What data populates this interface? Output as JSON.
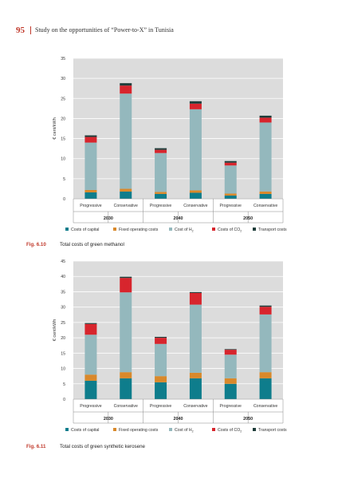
{
  "header": {
    "page_number": "95",
    "title": "Study on the opportunities of “Power-to-X” in Tunisia"
  },
  "colors": {
    "capital": "#0e7d8c",
    "fixed": "#d9892b",
    "h2": "#94b8bd",
    "co2": "#d7252d",
    "transport": "#1f3d3a",
    "plot_bg": "#dcdcdc",
    "accent": "#c0392b"
  },
  "captions": [
    {
      "fig": "Fig. 6.10",
      "text": "Total costs of green methanol"
    },
    {
      "fig": "Fig. 6.11",
      "text": "Total costs of green synthetic kerosene"
    }
  ],
  "chart_data": [
    {
      "type": "bar",
      "stacked": true,
      "ylabel": "€ cent/kWh",
      "ylim": [
        0,
        35
      ],
      "yticks": [
        0,
        5,
        10,
        15,
        20,
        25,
        30,
        35
      ],
      "grid": true,
      "legend_position": "bottom",
      "categories": [
        "Progressive",
        "Conservative",
        "Progressive",
        "Conservative",
        "Progressive",
        "Conservative"
      ],
      "groups": [
        "2030",
        "2040",
        "2050"
      ],
      "series": [
        {
          "name": "Costs of capital",
          "name_sub": "",
          "color_key": "capital",
          "values": [
            1.6,
            1.8,
            1.2,
            1.5,
            0.8,
            1.2
          ]
        },
        {
          "name": "Fixed operating costs",
          "name_sub": "",
          "color_key": "fixed",
          "values": [
            0.6,
            0.7,
            0.5,
            0.6,
            0.5,
            0.6
          ]
        },
        {
          "name": "Cost of H",
          "name_sub": "2",
          "color_key": "h2",
          "values": [
            11.8,
            23.7,
            9.7,
            20.2,
            7.0,
            17.2
          ]
        },
        {
          "name": "Costs of CO",
          "name_sub": "2",
          "color_key": "co2",
          "values": [
            1.4,
            2.0,
            0.8,
            1.4,
            0.7,
            1.2
          ]
        },
        {
          "name": "Transport costs",
          "name_sub": "",
          "color_key": "transport",
          "values": [
            0.4,
            0.6,
            0.4,
            0.6,
            0.4,
            0.5
          ]
        }
      ]
    },
    {
      "type": "bar",
      "stacked": true,
      "ylabel": "€ cent/kWh",
      "ylim": [
        0,
        45
      ],
      "yticks": [
        0,
        5,
        10,
        15,
        20,
        25,
        30,
        35,
        40,
        45
      ],
      "grid": true,
      "legend_position": "bottom",
      "categories": [
        "Progressive",
        "Conservative",
        "Progressive",
        "Conservative",
        "Progressive",
        "Conservative"
      ],
      "groups": [
        "2030",
        "2040",
        "2050"
      ],
      "series": [
        {
          "name": "Costs of capital",
          "name_sub": "",
          "color_key": "capital",
          "values": [
            6.0,
            6.8,
            5.5,
            6.8,
            5.0,
            6.8
          ]
        },
        {
          "name": "Fixed operating costs",
          "name_sub": "",
          "color_key": "fixed",
          "values": [
            2.0,
            2.0,
            2.0,
            1.8,
            1.8,
            2.0
          ]
        },
        {
          "name": "Cost of H",
          "name_sub": "2",
          "color_key": "h2",
          "values": [
            13.0,
            26.0,
            10.5,
            22.2,
            7.7,
            18.8
          ]
        },
        {
          "name": "Costs of CO",
          "name_sub": "2",
          "color_key": "co2",
          "values": [
            3.5,
            4.7,
            2.0,
            3.8,
            1.6,
            2.5
          ]
        },
        {
          "name": "Transport costs",
          "name_sub": "",
          "color_key": "transport",
          "values": [
            0.3,
            0.4,
            0.3,
            0.3,
            0.2,
            0.4
          ]
        }
      ]
    }
  ]
}
